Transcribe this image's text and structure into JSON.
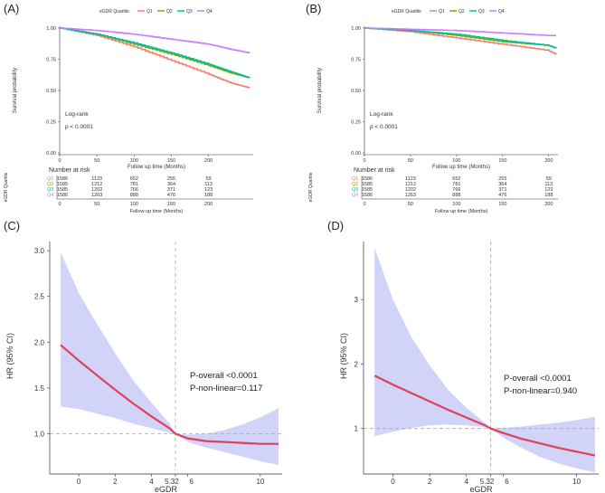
{
  "chart_data": [
    {
      "panel": "(A)",
      "type": "line",
      "subtype": "kaplan-meier",
      "legend_title": "eGDR Quartile",
      "legend_position": "top",
      "xlabel": "Follow up time (Months)",
      "ylabel": "Survival probability",
      "xlim": [
        0,
        260
      ],
      "ylim": [
        0,
        1
      ],
      "xticks": [
        "0",
        "50",
        "100",
        "150",
        "200"
      ],
      "yticks": [
        "0.00",
        "0.25",
        "0.50",
        "0.75",
        "1.00"
      ],
      "annotation": [
        "Log-rank",
        "p < 0.0001"
      ],
      "series": [
        {
          "name": "Q1",
          "color": "#f08070",
          "x": [
            0,
            50,
            100,
            150,
            200,
            230,
            255
          ],
          "y": [
            1.0,
            0.94,
            0.85,
            0.74,
            0.63,
            0.56,
            0.52
          ]
        },
        {
          "name": "Q2",
          "color": "#7cae00",
          "x": [
            0,
            50,
            100,
            150,
            200,
            230,
            255
          ],
          "y": [
            1.0,
            0.95,
            0.87,
            0.79,
            0.7,
            0.64,
            0.6
          ]
        },
        {
          "name": "Q3",
          "color": "#00bfa0",
          "x": [
            0,
            50,
            100,
            150,
            200,
            230,
            255
          ],
          "y": [
            1.0,
            0.95,
            0.88,
            0.8,
            0.71,
            0.65,
            0.6
          ]
        },
        {
          "name": "Q4",
          "color": "#c77cff",
          "x": [
            0,
            50,
            100,
            150,
            200,
            230,
            255
          ],
          "y": [
            1.0,
            0.98,
            0.95,
            0.91,
            0.87,
            0.83,
            0.8
          ]
        }
      ],
      "risk_table": {
        "title": "Number at risk",
        "ylabel": "eGDR Quartile",
        "xlabel": "Follow up time (Months)",
        "times": [
          "0",
          "50",
          "100",
          "150",
          "200"
        ],
        "rows": [
          {
            "name": "Q1",
            "values": [
              "1586",
              "1123",
              "652",
              "255",
              "59"
            ]
          },
          {
            "name": "Q2",
            "values": [
              "1585",
              "1212",
              "781",
              "364",
              "113"
            ]
          },
          {
            "name": "Q3",
            "values": [
              "1585",
              "1202",
              "766",
              "371",
              "123"
            ]
          },
          {
            "name": "Q4",
            "values": [
              "1586",
              "1263",
              "888",
              "476",
              "188"
            ]
          }
        ]
      }
    },
    {
      "panel": "(B)",
      "type": "line",
      "subtype": "kaplan-meier",
      "legend_title": "eGDR Quartile",
      "legend_position": "top",
      "xlabel": "Follow up time (Months)",
      "ylabel": "Survival probability",
      "xlim": [
        0,
        210
      ],
      "ylim": [
        0,
        1
      ],
      "xticks": [
        "0",
        "50",
        "100",
        "150",
        "200"
      ],
      "yticks": [
        "0.00",
        "0.25",
        "0.50",
        "0.75",
        "1.00"
      ],
      "annotation": [
        "Log-rank",
        "p < 0.0001"
      ],
      "series": [
        {
          "name": "Q1",
          "color": "#f08070",
          "x": [
            0,
            50,
            100,
            150,
            200,
            208
          ],
          "y": [
            1.0,
            0.97,
            0.92,
            0.87,
            0.82,
            0.79
          ]
        },
        {
          "name": "Q2",
          "color": "#7cae00",
          "x": [
            0,
            50,
            100,
            150,
            200,
            208
          ],
          "y": [
            1.0,
            0.98,
            0.94,
            0.89,
            0.86,
            0.84
          ]
        },
        {
          "name": "Q3",
          "color": "#00bfa0",
          "x": [
            0,
            50,
            100,
            150,
            200,
            208
          ],
          "y": [
            1.0,
            0.98,
            0.95,
            0.9,
            0.86,
            0.84
          ]
        },
        {
          "name": "Q4",
          "color": "#c77cff",
          "x": [
            0,
            50,
            100,
            150,
            200,
            208
          ],
          "y": [
            1.0,
            0.99,
            0.98,
            0.96,
            0.94,
            0.94
          ]
        }
      ],
      "risk_table": {
        "title": "Number at risk",
        "ylabel": "eGDR Quartile",
        "xlabel": "Follow up time (Months)",
        "times": [
          "0",
          "50",
          "100",
          "150",
          "200"
        ],
        "rows": [
          {
            "name": "Q1",
            "values": [
              "1586",
              "1123",
              "652",
              "255",
              "59"
            ]
          },
          {
            "name": "Q2",
            "values": [
              "1585",
              "1212",
              "781",
              "364",
              "113"
            ]
          },
          {
            "name": "Q3",
            "values": [
              "1585",
              "1202",
              "766",
              "371",
              "123"
            ]
          },
          {
            "name": "Q4",
            "values": [
              "1586",
              "1263",
              "888",
              "476",
              "188"
            ]
          }
        ]
      }
    },
    {
      "panel": "(C)",
      "type": "line",
      "subtype": "restricted-cubic-spline",
      "xlabel": "eGDR",
      "ylabel": "HR (95% CI)",
      "xlim": [
        -1.6,
        11.2
      ],
      "ylim": [
        0.6,
        3.1
      ],
      "xticks": [
        "0",
        "2",
        "4",
        "5.32",
        "6",
        "10"
      ],
      "yticks": [
        "1.0",
        "1.5",
        "2.0",
        "2.5",
        "3.0"
      ],
      "reference_x": 5.32,
      "reference_y": 1.0,
      "annotation": [
        "P-overall <0.0001",
        "P-non-linear=0.117"
      ],
      "colors": {
        "line": "#e0405a",
        "band": "#c9cbf7",
        "ref": "#aaaaaa"
      },
      "x": [
        -1,
        0,
        1,
        2,
        3,
        4,
        5,
        5.32,
        6,
        7,
        8,
        9,
        10,
        11
      ],
      "hr": [
        1.97,
        1.8,
        1.64,
        1.48,
        1.33,
        1.19,
        1.06,
        1.0,
        0.95,
        0.92,
        0.91,
        0.9,
        0.89,
        0.89
      ],
      "lower": [
        1.3,
        1.27,
        1.22,
        1.17,
        1.11,
        1.06,
        1.01,
        1.0,
        0.91,
        0.85,
        0.8,
        0.75,
        0.7,
        0.66
      ],
      "upper": [
        2.98,
        2.54,
        2.2,
        1.88,
        1.58,
        1.34,
        1.11,
        1.0,
        0.99,
        1.0,
        1.04,
        1.1,
        1.18,
        1.28
      ]
    },
    {
      "panel": "(D)",
      "type": "line",
      "subtype": "restricted-cubic-spline",
      "xlabel": "eGDR",
      "ylabel": "HR (95% CI)",
      "xlim": [
        -1.6,
        11.2
      ],
      "ylim": [
        0.35,
        3.9
      ],
      "xticks": [
        "0",
        "2",
        "4",
        "5.32",
        "6",
        "10"
      ],
      "yticks": [
        "1",
        "2",
        "3"
      ],
      "reference_x": 5.32,
      "reference_y": 1.0,
      "annotation": [
        "P-overall <0.0001",
        "P-non-linear=0.940"
      ],
      "colors": {
        "line": "#e0405a",
        "band": "#c9cbf7",
        "ref": "#aaaaaa"
      },
      "x": [
        -1,
        0,
        1,
        2,
        3,
        4,
        5,
        5.32,
        6,
        7,
        8,
        9,
        10,
        11
      ],
      "hr": [
        1.82,
        1.68,
        1.55,
        1.42,
        1.29,
        1.17,
        1.05,
        1.0,
        0.93,
        0.84,
        0.77,
        0.7,
        0.64,
        0.58
      ],
      "lower": [
        0.88,
        0.95,
        1.01,
        1.05,
        1.06,
        1.05,
        1.02,
        1.0,
        0.86,
        0.7,
        0.56,
        0.46,
        0.38,
        0.32
      ],
      "upper": [
        3.8,
        3.0,
        2.42,
        1.98,
        1.6,
        1.32,
        1.09,
        1.0,
        1.01,
        1.03,
        1.06,
        1.09,
        1.13,
        1.18
      ]
    }
  ]
}
